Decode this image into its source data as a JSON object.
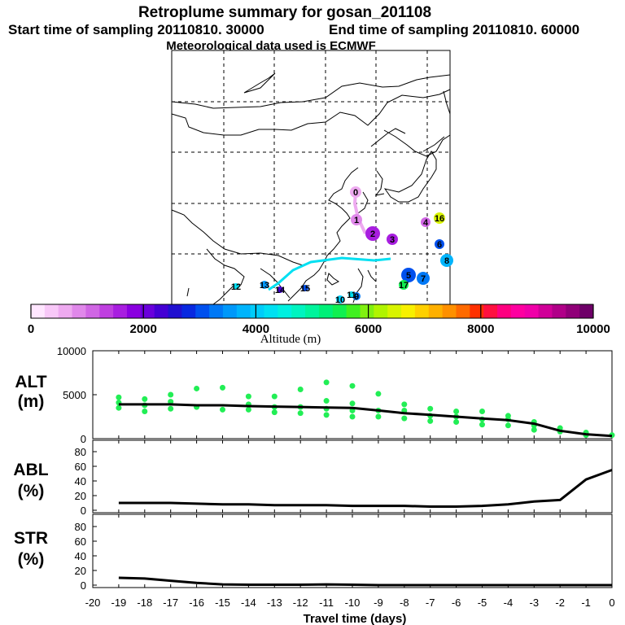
{
  "header": {
    "title": "Retroplume summary for gosan_201108",
    "start_label": "Start time of sampling 20110810. 30000",
    "end_label": "End time of sampling 20110810. 60000",
    "met_label": "Meteorological data used is ECMWF"
  },
  "colorbar": {
    "label": "Altitude (m)",
    "ticks": [
      "0",
      "2000",
      "4000",
      "6000",
      "8000",
      "10000"
    ],
    "colors": [
      "#ffe6ff",
      "#f8c8f8",
      "#eeaaf0",
      "#e088ea",
      "#d066e4",
      "#bf3fe0",
      "#a81ee0",
      "#8a00e0",
      "#6a00dc",
      "#4400d4",
      "#2010d0",
      "#0828e0",
      "#0050ee",
      "#0078f6",
      "#0098fa",
      "#00b4fc",
      "#00ccfa",
      "#00e0f2",
      "#00f0e0",
      "#00f4c0",
      "#00f49c",
      "#00f078",
      "#10f050",
      "#40f020",
      "#80f010",
      "#b0f400",
      "#d8f400",
      "#f8f000",
      "#ffd000",
      "#ffb000",
      "#ff9000",
      "#ff6a00",
      "#ff3000",
      "#ff1040",
      "#ff0080",
      "#ff00a0",
      "#f000a8",
      "#d00098",
      "#b00088",
      "#900078",
      "#6e0068"
    ]
  },
  "map": {
    "points": [
      {
        "n": "0",
        "color": "#eeaaf0",
        "r": 7
      },
      {
        "n": "1",
        "color": "#e088ea",
        "r": 7
      },
      {
        "n": "2",
        "color": "#a81ee0",
        "r": 9
      },
      {
        "n": "3",
        "color": "#a81ee0",
        "r": 7
      },
      {
        "n": "4",
        "color": "#d066e4",
        "r": 6
      },
      {
        "n": "16",
        "color": "#d8f400",
        "r": 7
      },
      {
        "n": "6",
        "color": "#0050ee",
        "r": 6
      },
      {
        "n": "8",
        "color": "#00b4fc",
        "r": 8
      },
      {
        "n": "5",
        "color": "#0050ee",
        "r": 9
      },
      {
        "n": "7",
        "color": "#0078f6",
        "r": 8
      },
      {
        "n": "17",
        "color": "#10f050",
        "r": 6
      },
      {
        "n": "10",
        "color": "#00ccfa",
        "r": 5
      },
      {
        "n": "9",
        "color": "#0078f6",
        "r": 5
      },
      {
        "n": "11",
        "color": "#00e0f2",
        "r": 4
      },
      {
        "n": "12",
        "color": "#00e0f2",
        "r": 4
      },
      {
        "n": "13",
        "color": "#0098fa",
        "r": 5
      },
      {
        "n": "14",
        "color": "#4400d4",
        "r": 4
      },
      {
        "n": "15",
        "color": "#0050ee",
        "r": 4
      }
    ]
  },
  "panels": {
    "alt": {
      "label1": "ALT",
      "label2": "(m)"
    },
    "abl": {
      "label1": "ABL",
      "label2": "(%)"
    },
    "str": {
      "label1": "STR",
      "label2": "(%)"
    }
  },
  "chart_data": [
    {
      "type": "line",
      "title": "ALT (m)",
      "ylabel": "ALT (m)",
      "ylim": [
        0,
        10000
      ],
      "yticks": [
        "0",
        "5000",
        "10000"
      ],
      "x": [
        -19,
        -18,
        -17,
        -16,
        -15,
        -14,
        -13,
        -12,
        -11,
        -10,
        -9,
        -8,
        -7,
        -6,
        -5,
        -4,
        -3,
        -2,
        -1,
        0
      ],
      "values": [
        3900,
        3900,
        3900,
        3800,
        3800,
        3700,
        3650,
        3600,
        3550,
        3500,
        3200,
        2900,
        2700,
        2500,
        2300,
        2100,
        1700,
        900,
        500,
        300
      ],
      "scatter": [
        {
          "x": -19,
          "y": [
            4700,
            4100,
            3500
          ]
        },
        {
          "x": -18,
          "y": [
            4500,
            3800,
            3100
          ]
        },
        {
          "x": -17,
          "y": [
            5000,
            4200,
            3400
          ]
        },
        {
          "x": -16,
          "y": [
            5700,
            3600
          ]
        },
        {
          "x": -15,
          "y": [
            5800,
            3300
          ]
        },
        {
          "x": -14,
          "y": [
            4800,
            3900,
            3300
          ]
        },
        {
          "x": -13,
          "y": [
            4800,
            3600,
            3000
          ]
        },
        {
          "x": -12,
          "y": [
            5600,
            3600,
            2900
          ]
        },
        {
          "x": -11,
          "y": [
            6400,
            4300,
            3400,
            2700
          ]
        },
        {
          "x": -10,
          "y": [
            6000,
            4000,
            3200,
            2500
          ]
        },
        {
          "x": -9,
          "y": [
            5100,
            3200,
            2500
          ]
        },
        {
          "x": -8,
          "y": [
            3900,
            3200,
            2300
          ]
        },
        {
          "x": -7,
          "y": [
            3400,
            2600,
            2000
          ]
        },
        {
          "x": -6,
          "y": [
            3100,
            2500,
            1900
          ]
        },
        {
          "x": -5,
          "y": [
            3100,
            2200,
            1600
          ]
        },
        {
          "x": -4,
          "y": [
            2600,
            2200,
            1500
          ]
        },
        {
          "x": -3,
          "y": [
            1900,
            1500,
            1000
          ]
        },
        {
          "x": -2,
          "y": [
            1200,
            800
          ]
        },
        {
          "x": -1,
          "y": [
            700,
            400
          ]
        },
        {
          "x": 0,
          "y": [
            400
          ]
        }
      ]
    },
    {
      "type": "line",
      "title": "ABL (%)",
      "ylabel": "ABL (%)",
      "ylim": [
        0,
        90
      ],
      "yticks": [
        "0",
        "20",
        "40",
        "60",
        "80"
      ],
      "x": [
        -19,
        -18,
        -17,
        -16,
        -15,
        -14,
        -13,
        -12,
        -11,
        -10,
        -9,
        -8,
        -7,
        -6,
        -5,
        -4,
        -3,
        -2,
        -1,
        0
      ],
      "values": [
        10,
        10,
        10,
        9,
        8,
        8,
        7,
        7,
        7,
        6,
        6,
        6,
        5,
        5,
        6,
        8,
        12,
        14,
        42,
        55
      ]
    },
    {
      "type": "line",
      "title": "STR (%)",
      "ylabel": "STR (%)",
      "xlabel": "Travel time (days)",
      "ylim": [
        0,
        90
      ],
      "yticks": [
        "0",
        "20",
        "40",
        "60",
        "80"
      ],
      "xlim": [
        -20,
        0
      ],
      "xticks": [
        "-20",
        "-19",
        "-18",
        "-17",
        "-16",
        "-15",
        "-14",
        "-13",
        "-12",
        "-11",
        "-10",
        "-9",
        "-8",
        "-7",
        "-6",
        "-5",
        "-4",
        "-3",
        "-2",
        "-1",
        "0"
      ],
      "x": [
        -19,
        -18,
        -17,
        -16,
        -15,
        -14,
        -13,
        -12,
        -11,
        -10,
        -9,
        -8,
        -7,
        -6,
        -5,
        -4,
        -3,
        -2,
        -1,
        0
      ],
      "values": [
        10,
        9,
        6,
        3,
        1,
        0.5,
        0.5,
        0.5,
        1,
        0.5,
        0,
        0,
        0,
        0,
        0,
        0,
        0,
        0,
        0,
        0
      ]
    }
  ]
}
